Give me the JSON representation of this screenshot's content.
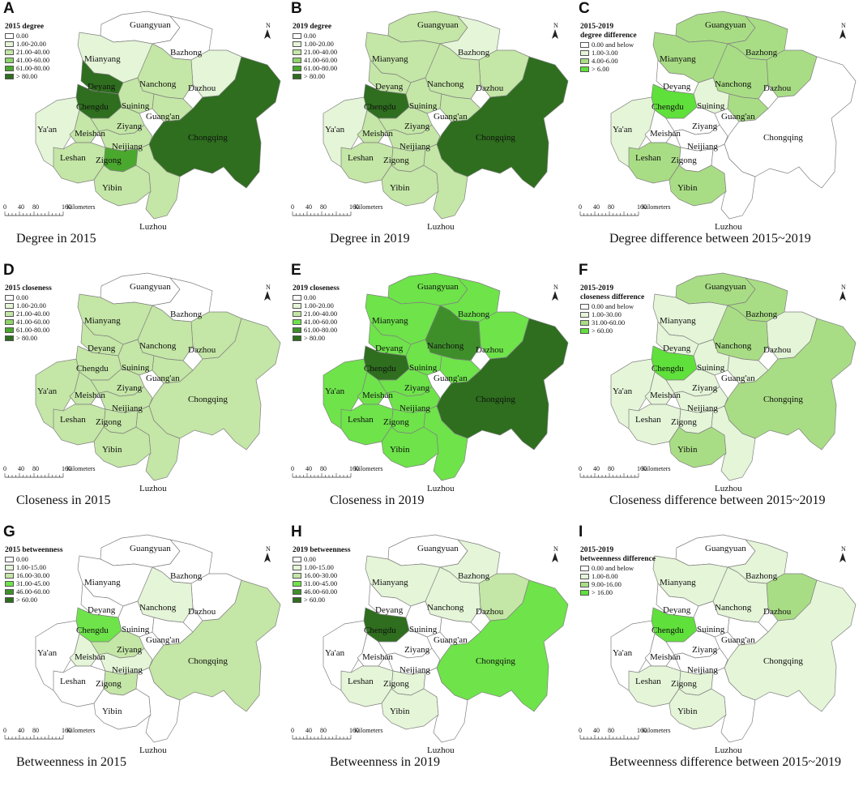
{
  "panels": [
    {
      "letter": "A",
      "caption": "Degree in 2015",
      "legend_title": [
        "2015 degree"
      ],
      "classes": [
        "0.00",
        "1.00-20.00",
        "21.00-40.00",
        "41.00-60.00",
        "61.00-80.00",
        "> 80.00"
      ],
      "class_colors": [
        "#ffffff",
        "#e5f5d8",
        "#c4e6a6",
        "#8fd46a",
        "#4aa82e",
        "#2e6e1e"
      ],
      "regions": {
        "Guangyuan": "#ffffff",
        "Bazhong": "#ffffff",
        "Mianyang": "#e5f5d8",
        "Dazhou": "#e5f5d8",
        "Deyang": "#2e6e1e",
        "Chengdu": "#2e6e1e",
        "Nanchong": "#c4e6a6",
        "Suining": "#c4e6a6",
        "Guang'an": "#c4e6a6",
        "Chongqing": "#2e6e1e",
        "Ya'an": "#e5f5d8",
        "Meishan": "#c4e6a6",
        "Ziyang": "#c4e6a6",
        "Neijiang": "#c4e6a6",
        "Leshan": "#c4e6a6",
        "Zigong": "#4aa82e",
        "Yibin": "#c4e6a6",
        "Luzhou": "#c4e6a6"
      }
    },
    {
      "letter": "B",
      "caption": "Degree in 2019",
      "legend_title": [
        "2019 degree"
      ],
      "classes": [
        "0.00",
        "1.00-20.00",
        "21.00-40.00",
        "41.00-60.00",
        "61.00-80.00",
        "> 80.00"
      ],
      "class_colors": [
        "#ffffff",
        "#e5f5d8",
        "#c4e6a6",
        "#8fd46a",
        "#4aa82e",
        "#2e6e1e"
      ],
      "regions": {
        "Guangyuan": "#c4e6a6",
        "Bazhong": "#e5f5d8",
        "Mianyang": "#c4e6a6",
        "Dazhou": "#c4e6a6",
        "Deyang": "#c4e6a6",
        "Chengdu": "#2e6e1e",
        "Nanchong": "#c4e6a6",
        "Suining": "#c4e6a6",
        "Guang'an": "#c4e6a6",
        "Chongqing": "#2e6e1e",
        "Ya'an": "#e5f5d8",
        "Meishan": "#c4e6a6",
        "Ziyang": "#c4e6a6",
        "Neijiang": "#c4e6a6",
        "Leshan": "#c4e6a6",
        "Zigong": "#c4e6a6",
        "Yibin": "#c4e6a6",
        "Luzhou": "#c4e6a6"
      }
    },
    {
      "letter": "C",
      "caption": "Degree difference between 2015~2019",
      "legend_title": [
        "2015-2019",
        "degree difference"
      ],
      "classes": [
        "0.00 and below",
        "1.00-3.00",
        "4.00-6.00",
        "> 6.00"
      ],
      "class_colors": [
        "#ffffff",
        "#e5f5d8",
        "#a9dd85",
        "#5fe03a"
      ],
      "regions": {
        "Guangyuan": "#a9dd85",
        "Bazhong": "#a9dd85",
        "Mianyang": "#a9dd85",
        "Dazhou": "#a9dd85",
        "Deyang": "#ffffff",
        "Chengdu": "#5fe03a",
        "Nanchong": "#a9dd85",
        "Suining": "#e5f5d8",
        "Guang'an": "#a9dd85",
        "Chongqing": "#ffffff",
        "Ya'an": "#e5f5d8",
        "Meishan": "#ffffff",
        "Ziyang": "#ffffff",
        "Neijiang": "#ffffff",
        "Leshan": "#a9dd85",
        "Zigong": "#ffffff",
        "Yibin": "#a9dd85",
        "Luzhou": "#ffffff"
      }
    },
    {
      "letter": "D",
      "caption": "Closeness in 2015",
      "legend_title": [
        "2015 closeness"
      ],
      "classes": [
        "0.00",
        "1.00-20.00",
        "21.00-40.00",
        "41.00-60.00",
        "61.00-80.00",
        "> 80.00"
      ],
      "class_colors": [
        "#ffffff",
        "#e5f5d8",
        "#c4e6a6",
        "#8fd46a",
        "#4aa82e",
        "#2e6e1e"
      ],
      "regions": {
        "Guangyuan": "#ffffff",
        "Bazhong": "#ffffff",
        "Mianyang": "#c4e6a6",
        "Dazhou": "#c4e6a6",
        "Deyang": "#c4e6a6",
        "Chengdu": "#c4e6a6",
        "Nanchong": "#c4e6a6",
        "Suining": "#c4e6a6",
        "Guang'an": "#c4e6a6",
        "Chongqing": "#c4e6a6",
        "Ya'an": "#c4e6a6",
        "Meishan": "#c4e6a6",
        "Ziyang": "#c4e6a6",
        "Neijiang": "#c4e6a6",
        "Leshan": "#c4e6a6",
        "Zigong": "#c4e6a6",
        "Yibin": "#c4e6a6",
        "Luzhou": "#c4e6a6"
      }
    },
    {
      "letter": "E",
      "caption": "Closeness in 2019",
      "legend_title": [
        "2019 closeness"
      ],
      "classes": [
        "0.00",
        "1.00-20.00",
        "21.00-40.00",
        "41.00-60.00",
        "61.00-80.00",
        "> 80.00"
      ],
      "class_colors": [
        "#ffffff",
        "#e5f5d8",
        "#c4e6a6",
        "#6ee34a",
        "#3e8f2a",
        "#2e6e1e"
      ],
      "regions": {
        "Guangyuan": "#6ee34a",
        "Bazhong": "#6ee34a",
        "Mianyang": "#6ee34a",
        "Dazhou": "#6ee34a",
        "Deyang": "#6ee34a",
        "Chengdu": "#2e6e1e",
        "Nanchong": "#3e8f2a",
        "Suining": "#6ee34a",
        "Guang'an": "#6ee34a",
        "Chongqing": "#2e6e1e",
        "Ya'an": "#6ee34a",
        "Meishan": "#6ee34a",
        "Ziyang": "#6ee34a",
        "Neijiang": "#6ee34a",
        "Leshan": "#6ee34a",
        "Zigong": "#6ee34a",
        "Yibin": "#6ee34a",
        "Luzhou": "#6ee34a"
      }
    },
    {
      "letter": "F",
      "caption": "Closeness difference between 2015~2019",
      "legend_title": [
        "2015-2019",
        "closeness difference"
      ],
      "classes": [
        "0.00 and below",
        "1.00-30.00",
        "31.00-60.00",
        "> 60.00"
      ],
      "class_colors": [
        "#ffffff",
        "#e5f5d8",
        "#a9dd85",
        "#5fe03a"
      ],
      "regions": {
        "Guangyuan": "#a9dd85",
        "Bazhong": "#a9dd85",
        "Mianyang": "#e5f5d8",
        "Dazhou": "#e5f5d8",
        "Deyang": "#e5f5d8",
        "Chengdu": "#5fe03a",
        "Nanchong": "#a9dd85",
        "Suining": "#e5f5d8",
        "Guang'an": "#e5f5d8",
        "Chongqing": "#a9dd85",
        "Ya'an": "#e5f5d8",
        "Meishan": "#e5f5d8",
        "Ziyang": "#e5f5d8",
        "Neijiang": "#e5f5d8",
        "Leshan": "#e5f5d8",
        "Zigong": "#e5f5d8",
        "Yibin": "#a9dd85",
        "Luzhou": "#e5f5d8"
      }
    },
    {
      "letter": "G",
      "caption": "Betweenness in 2015",
      "legend_title": [
        "2015 betweenness"
      ],
      "classes": [
        "0.00",
        "1.00-15.00",
        "16.00-30.00",
        "31.00-45.00",
        "46.00-60.00",
        "> 60.00"
      ],
      "class_colors": [
        "#ffffff",
        "#e5f5d8",
        "#c4e6a6",
        "#6ee34a",
        "#3e8f2a",
        "#2e6e1e"
      ],
      "regions": {
        "Guangyuan": "#ffffff",
        "Bazhong": "#ffffff",
        "Mianyang": "#ffffff",
        "Dazhou": "#ffffff",
        "Deyang": "#ffffff",
        "Chengdu": "#6ee34a",
        "Nanchong": "#e5f5d8",
        "Suining": "#ffffff",
        "Guang'an": "#ffffff",
        "Chongqing": "#c4e6a6",
        "Ya'an": "#ffffff",
        "Meishan": "#e5f5d8",
        "Ziyang": "#c4e6a6",
        "Neijiang": "#e5f5d8",
        "Leshan": "#ffffff",
        "Zigong": "#c4e6a6",
        "Yibin": "#ffffff",
        "Luzhou": "#ffffff"
      }
    },
    {
      "letter": "H",
      "caption": "Betweenness in 2019",
      "legend_title": [
        "2019 betweenness"
      ],
      "classes": [
        "0.00",
        "1.00-15.00",
        "16.00-30.00",
        "31.00-45.00",
        "46.00-60.00",
        "> 60.00"
      ],
      "class_colors": [
        "#ffffff",
        "#e5f5d8",
        "#c4e6a6",
        "#6ee34a",
        "#3e8f2a",
        "#2e6e1e"
      ],
      "regions": {
        "Guangyuan": "#ffffff",
        "Bazhong": "#e5f5d8",
        "Mianyang": "#e5f5d8",
        "Dazhou": "#c4e6a6",
        "Deyang": "#ffffff",
        "Chengdu": "#2e6e1e",
        "Nanchong": "#e5f5d8",
        "Suining": "#ffffff",
        "Guang'an": "#ffffff",
        "Chongqing": "#6ee34a",
        "Ya'an": "#ffffff",
        "Meishan": "#ffffff",
        "Ziyang": "#ffffff",
        "Neijiang": "#ffffff",
        "Leshan": "#e5f5d8",
        "Zigong": "#e5f5d8",
        "Yibin": "#e5f5d8",
        "Luzhou": "#ffffff"
      }
    },
    {
      "letter": "I",
      "caption": "Betweenness difference between 2015~2019",
      "legend_title": [
        "2015-2019",
        "betweenness difference"
      ],
      "classes": [
        "0.00 and below",
        "1.00-8.00",
        "9.00-16.00",
        "> 16.00"
      ],
      "class_colors": [
        "#ffffff",
        "#e5f5d8",
        "#a9dd85",
        "#5fe03a"
      ],
      "regions": {
        "Guangyuan": "#ffffff",
        "Bazhong": "#e5f5d8",
        "Mianyang": "#e5f5d8",
        "Dazhou": "#a9dd85",
        "Deyang": "#ffffff",
        "Chengdu": "#5fe03a",
        "Nanchong": "#e5f5d8",
        "Suining": "#ffffff",
        "Guang'an": "#ffffff",
        "Chongqing": "#e5f5d8",
        "Ya'an": "#ffffff",
        "Meishan": "#ffffff",
        "Ziyang": "#ffffff",
        "Neijiang": "#ffffff",
        "Leshan": "#e5f5d8",
        "Zigong": "#e5f5d8",
        "Yibin": "#e5f5d8",
        "Luzhou": "#ffffff"
      }
    }
  ],
  "scale": {
    "ticks": [
      "0",
      "40",
      "80",
      "160"
    ],
    "unit": "Kilometers"
  },
  "north_label": "N"
}
